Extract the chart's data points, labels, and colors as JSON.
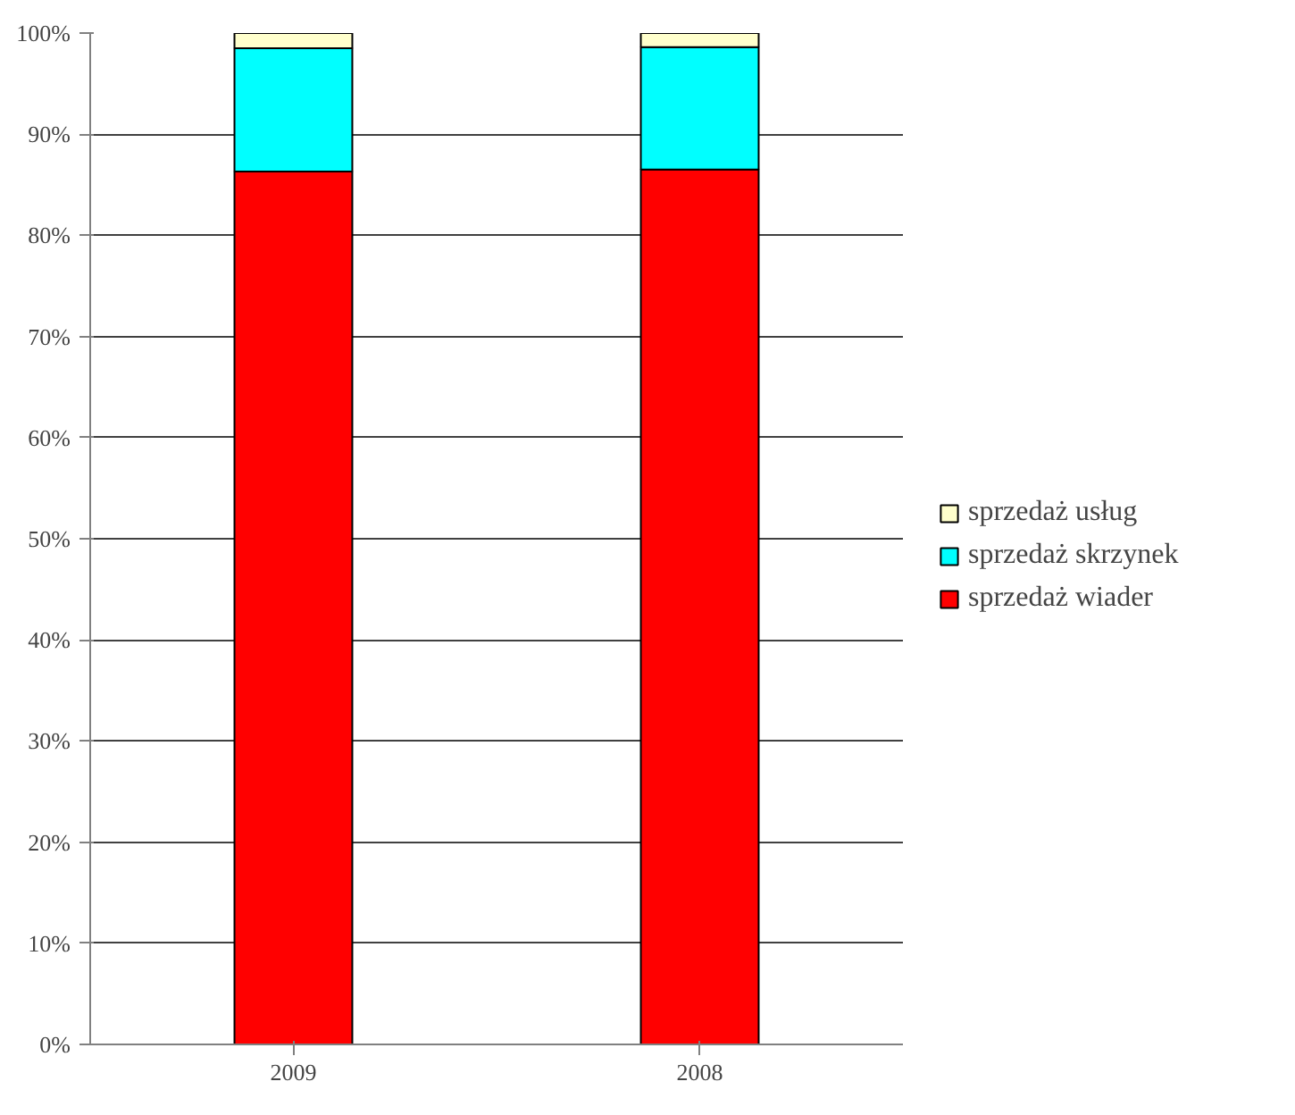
{
  "chart_data": {
    "type": "bar",
    "stacked": true,
    "categories": [
      "2009",
      "2008"
    ],
    "series": [
      {
        "name": "sprzedaż wiader",
        "color": "#ff0000",
        "values": [
          86.3,
          86.5
        ]
      },
      {
        "name": "sprzedaż skrzynek",
        "color": "#00ffff",
        "values": [
          12.2,
          12.1
        ]
      },
      {
        "name": "sprzedaż usług",
        "color": "#ffffcc",
        "values": [
          1.5,
          1.4
        ]
      }
    ],
    "ylim": [
      0,
      100
    ],
    "yticks": [
      {
        "value": 0,
        "label": "0%"
      },
      {
        "value": 10,
        "label": "10%"
      },
      {
        "value": 20,
        "label": "20%"
      },
      {
        "value": 30,
        "label": "30%"
      },
      {
        "value": 40,
        "label": "40%"
      },
      {
        "value": 50,
        "label": "50%"
      },
      {
        "value": 60,
        "label": "60%"
      },
      {
        "value": 70,
        "label": "70%"
      },
      {
        "value": 80,
        "label": "80%"
      },
      {
        "value": 90,
        "label": "90%"
      },
      {
        "value": 100,
        "label": "100%"
      }
    ],
    "grid": "y",
    "legend": "right"
  }
}
